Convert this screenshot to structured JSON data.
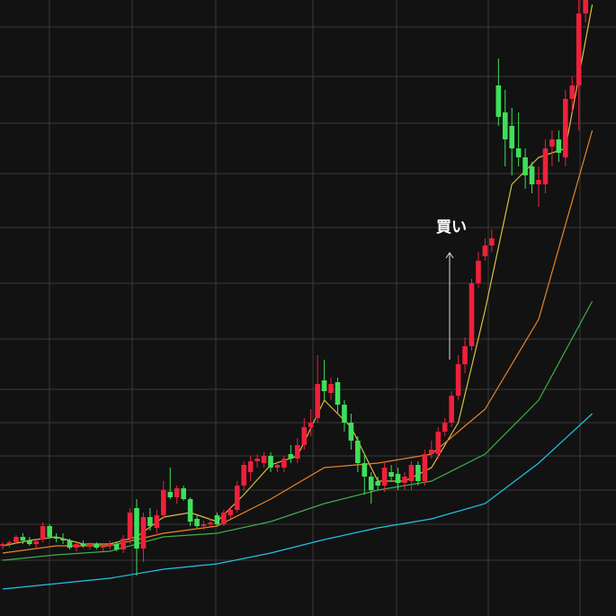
{
  "chart_data": {
    "type": "candlestick",
    "ylim": [
      0,
      685
    ],
    "up_color": "#f0203a",
    "down_color": "#3ee05a",
    "open": [
      78,
      80,
      82,
      88,
      84,
      80,
      85,
      100,
      88,
      86,
      84,
      76,
      80,
      78,
      80,
      76,
      78,
      80,
      74,
      86,
      120,
      75,
      110,
      98,
      112,
      138,
      132,
      142,
      130,
      108,
      100,
      102,
      112,
      102,
      112,
      118,
      145,
      160,
      172,
      170,
      178,
      165,
      165,
      180,
      175,
      190,
      210,
      220,
      262,
      248,
      260,
      235,
      215,
      195,
      170,
      155,
      150,
      145,
      160,
      158,
      148,
      150,
      168,
      150,
      180,
      180,
      205,
      215,
      245,
      280,
      300,
      370,
      400,
      412,
      590,
      560,
      545,
      520,
      510,
      500,
      480,
      480,
      522,
      530,
      510,
      575,
      590,
      670,
      700
    ],
    "high": [
      82,
      84,
      90,
      92,
      88,
      86,
      104,
      102,
      92,
      92,
      86,
      82,
      84,
      82,
      82,
      80,
      84,
      82,
      90,
      120,
      130,
      115,
      120,
      118,
      150,
      165,
      145,
      145,
      132,
      112,
      106,
      108,
      115,
      118,
      122,
      150,
      172,
      178,
      180,
      182,
      182,
      172,
      178,
      190,
      198,
      220,
      230,
      290,
      285,
      265,
      265,
      240,
      225,
      200,
      180,
      160,
      155,
      172,
      168,
      165,
      160,
      172,
      172,
      185,
      195,
      210,
      220,
      250,
      290,
      310,
      375,
      405,
      420,
      430,
      620,
      585,
      565,
      560,
      520,
      505,
      500,
      530,
      540,
      540,
      585,
      600,
      690,
      720,
      740
    ],
    "low": [
      74,
      76,
      80,
      80,
      78,
      76,
      82,
      86,
      82,
      80,
      74,
      72,
      76,
      74,
      74,
      72,
      74,
      72,
      70,
      80,
      45,
      60,
      95,
      92,
      108,
      130,
      125,
      128,
      100,
      98,
      96,
      98,
      100,
      100,
      108,
      115,
      140,
      150,
      165,
      165,
      160,
      160,
      160,
      170,
      170,
      185,
      200,
      215,
      240,
      240,
      225,
      205,
      185,
      160,
      135,
      125,
      140,
      138,
      150,
      140,
      140,
      140,
      145,
      145,
      175,
      175,
      200,
      210,
      240,
      270,
      295,
      365,
      395,
      405,
      545,
      500,
      490,
      500,
      475,
      470,
      455,
      470,
      500,
      505,
      500,
      560,
      540,
      660,
      690
    ],
    "close": [
      80,
      82,
      88,
      84,
      80,
      83,
      100,
      88,
      86,
      84,
      76,
      80,
      78,
      80,
      76,
      78,
      80,
      74,
      86,
      115,
      75,
      110,
      100,
      112,
      140,
      132,
      142,
      130,
      105,
      100,
      102,
      104,
      102,
      115,
      118,
      145,
      168,
      172,
      175,
      178,
      165,
      168,
      175,
      175,
      190,
      210,
      215,
      258,
      250,
      258,
      235,
      215,
      195,
      170,
      155,
      140,
      145,
      165,
      155,
      148,
      155,
      168,
      150,
      180,
      185,
      205,
      215,
      245,
      280,
      300,
      370,
      395,
      412,
      420,
      555,
      530,
      520,
      510,
      490,
      480,
      485,
      520,
      530,
      515,
      575,
      590,
      670,
      700,
      720
    ],
    "series": [
      {
        "color": "#d8c040",
        "x": [
          0,
          4,
          8,
          12,
          16,
          20,
          24,
          28,
          32,
          36,
          40,
          44,
          48,
          52,
          56,
          60,
          64,
          68,
          72,
          76,
          80,
          84,
          88
        ],
        "values": [
          78,
          84,
          88,
          80,
          80,
          88,
          110,
          115,
          105,
          135,
          168,
          178,
          240,
          210,
          150,
          150,
          165,
          215,
          340,
          480,
          510,
          520,
          680
        ]
      },
      {
        "color": "#e8842a",
        "x": [
          0,
          8,
          16,
          24,
          32,
          40,
          48,
          56,
          64,
          72,
          80,
          88
        ],
        "values": [
          70,
          78,
          78,
          92,
          100,
          130,
          165,
          170,
          180,
          230,
          330,
          540
        ]
      },
      {
        "color": "#3fae48",
        "x": [
          0,
          8,
          16,
          24,
          32,
          40,
          48,
          56,
          64,
          72,
          80,
          88
        ],
        "values": [
          62,
          68,
          72,
          88,
          92,
          105,
          125,
          140,
          150,
          180,
          240,
          350
        ]
      },
      {
        "color": "#22c3e6",
        "x": [
          0,
          8,
          16,
          24,
          32,
          40,
          48,
          56,
          64,
          72,
          80,
          88
        ],
        "values": [
          30,
          36,
          42,
          52,
          58,
          70,
          85,
          98,
          108,
          125,
          170,
          225
        ]
      }
    ],
    "annotation": "買い"
  }
}
